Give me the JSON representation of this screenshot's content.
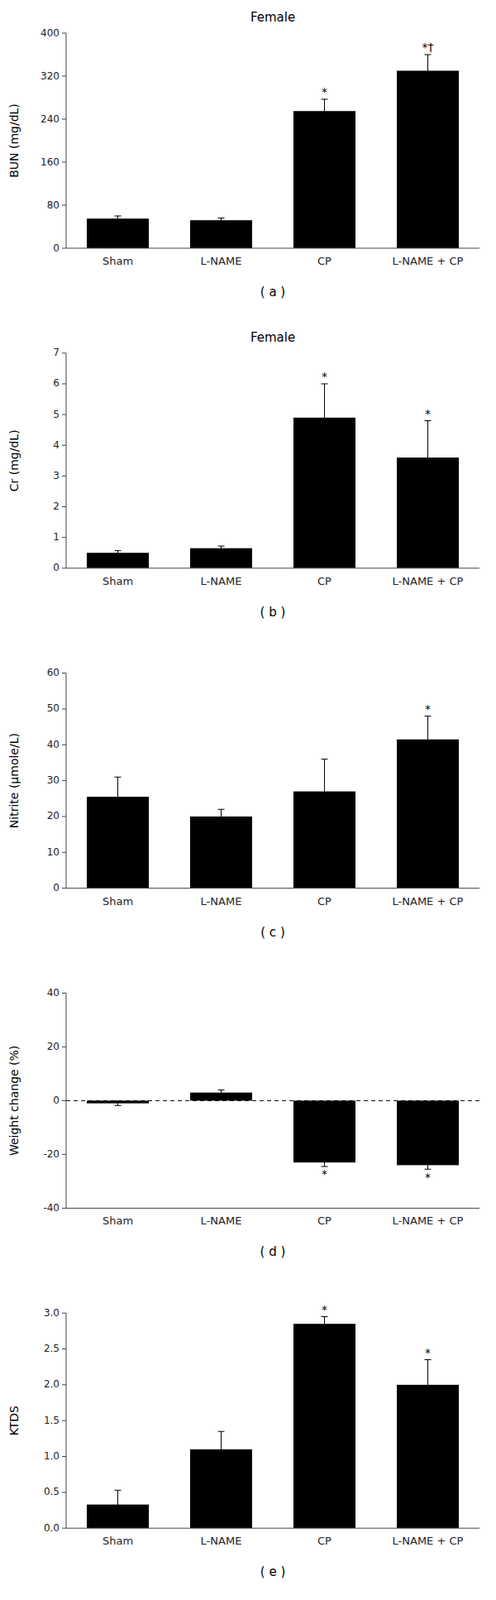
{
  "chart_data": [
    {
      "type": "bar",
      "title": "Female",
      "panel_label": "( a )",
      "ylabel": "BUN (mg/dL)",
      "categories": [
        "Sham",
        "L-NAME",
        "CP",
        "L-NAME + CP"
      ],
      "values": [
        55,
        52,
        255,
        330
      ],
      "errors": [
        5,
        4,
        22,
        30
      ],
      "annotations": [
        null,
        null,
        "*",
        "*†"
      ],
      "color": "#000000",
      "ylim": [
        0,
        400
      ],
      "yticks": [
        0,
        80,
        160,
        240,
        320,
        400
      ]
    },
    {
      "type": "bar",
      "title": "Female",
      "panel_label": "( b )",
      "ylabel": "Cr (mg/dL)",
      "categories": [
        "Sham",
        "L-NAME",
        "CP",
        "L-NAME + CP"
      ],
      "values": [
        0.5,
        0.65,
        4.9,
        3.6
      ],
      "errors": [
        0.07,
        0.07,
        1.1,
        1.2
      ],
      "annotations": [
        null,
        null,
        "*",
        "*"
      ],
      "color": "#000000",
      "ylim": [
        0,
        7
      ],
      "yticks": [
        0,
        1,
        2,
        3,
        4,
        5,
        6,
        7
      ]
    },
    {
      "type": "bar",
      "panel_label": "( c )",
      "ylabel": "Nitrite (μmole/L)",
      "categories": [
        "Sham",
        "L-NAME",
        "CP",
        "L-NAME + CP"
      ],
      "values": [
        25.5,
        20.0,
        27.0,
        41.5
      ],
      "errors": [
        5.5,
        2.0,
        9.0,
        6.5
      ],
      "annotations": [
        null,
        null,
        null,
        "*"
      ],
      "color": "#000000",
      "ylim": [
        0,
        60
      ],
      "yticks": [
        0,
        10,
        20,
        30,
        40,
        50,
        60
      ]
    },
    {
      "type": "bar",
      "panel_label": "( d )",
      "ylabel": "Weight change (%)",
      "categories": [
        "Sham",
        "L-NAME",
        "CP",
        "L-NAME + CP"
      ],
      "values": [
        -1.0,
        3.0,
        -23.0,
        -24.0
      ],
      "errors": [
        0.8,
        1.0,
        1.5,
        1.5
      ],
      "annotations": [
        null,
        null,
        "*",
        "*"
      ],
      "color": "#000000",
      "hline": 0,
      "ylim": [
        -40,
        40
      ],
      "yticks": [
        -40,
        -20,
        0,
        20,
        40
      ]
    },
    {
      "type": "bar",
      "panel_label": "( e )",
      "ylabel": "KTDS",
      "categories": [
        "Sham",
        "L-NAME",
        "CP",
        "L-NAME + CP"
      ],
      "values": [
        0.33,
        1.1,
        2.85,
        2.0
      ],
      "errors": [
        0.2,
        0.25,
        0.1,
        0.35
      ],
      "annotations": [
        null,
        null,
        "*",
        "*"
      ],
      "color": "#000000",
      "ylim": [
        0,
        3
      ],
      "yticks": [
        {
          "value": 0,
          "label": "0.0"
        },
        0.5,
        {
          "value": 1,
          "label": "1.0"
        },
        1.5,
        {
          "value": 2,
          "label": "2.0"
        },
        2.5,
        {
          "value": 3,
          "label": "3.0"
        }
      ]
    }
  ]
}
